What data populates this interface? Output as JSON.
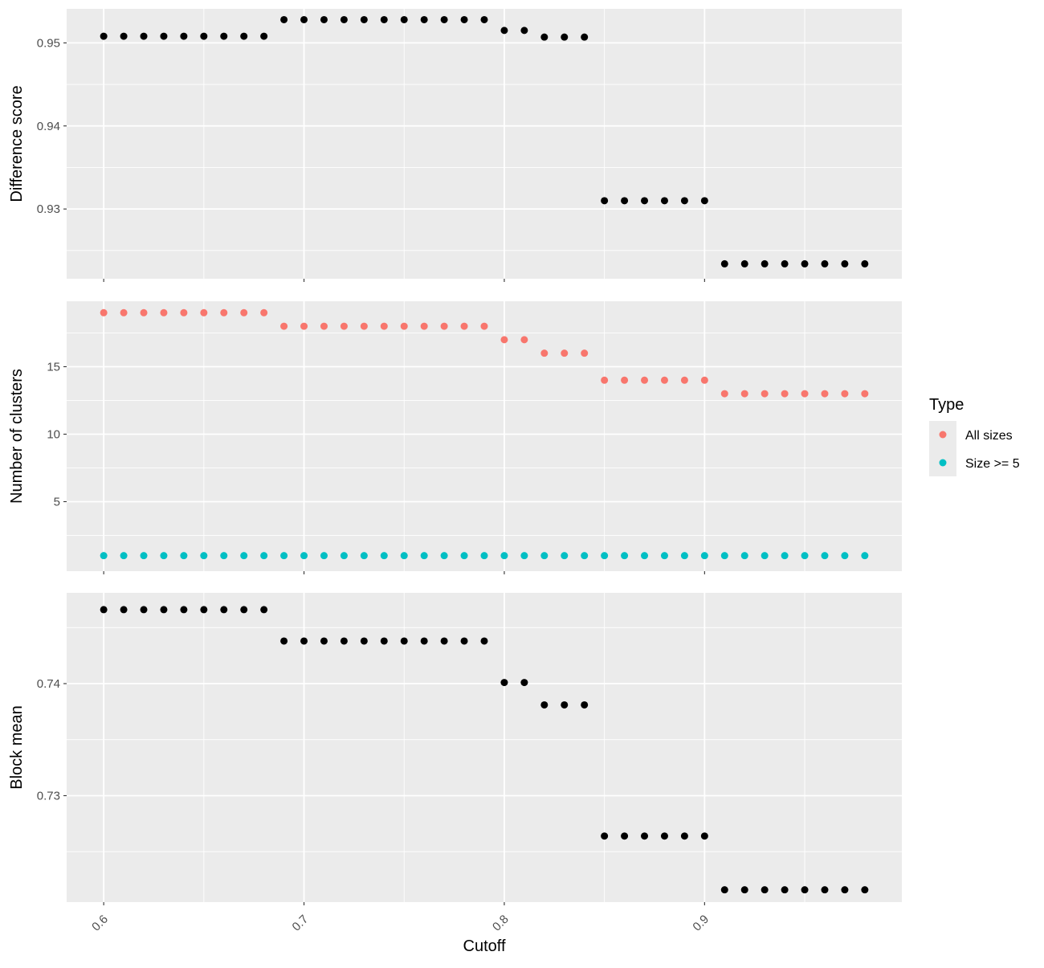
{
  "chart_data": [
    {
      "type": "scatter",
      "panel": "top",
      "ylabel": "Difference score",
      "yticks": [
        "0.95",
        "0.94",
        "0.93"
      ],
      "ytick_values": [
        0.95,
        0.94,
        0.93
      ],
      "ylim": [
        0.9216,
        0.9541
      ],
      "xlim": [
        0.5815,
        0.9985
      ],
      "grid": true,
      "x": [
        0.6,
        0.61,
        0.62,
        0.63,
        0.64,
        0.65,
        0.66,
        0.67,
        0.68,
        0.69,
        0.7,
        0.71,
        0.72,
        0.73,
        0.74,
        0.75,
        0.76,
        0.77,
        0.78,
        0.79,
        0.8,
        0.81,
        0.82,
        0.83,
        0.84,
        0.85,
        0.86,
        0.87,
        0.88,
        0.89,
        0.9,
        0.91,
        0.92,
        0.93,
        0.94,
        0.95,
        0.96,
        0.97,
        0.98
      ],
      "y": [
        0.9508,
        0.9508,
        0.9508,
        0.9508,
        0.9508,
        0.9508,
        0.9508,
        0.9508,
        0.9508,
        0.9528,
        0.9528,
        0.9528,
        0.9528,
        0.9528,
        0.9528,
        0.9528,
        0.9528,
        0.9528,
        0.9528,
        0.9528,
        0.9515,
        0.9515,
        0.9507,
        0.9507,
        0.9507,
        0.931,
        0.931,
        0.931,
        0.931,
        0.931,
        0.931,
        0.9234,
        0.9234,
        0.9234,
        0.9234,
        0.9234,
        0.9234,
        0.9234,
        0.9234
      ],
      "color": "#000000"
    },
    {
      "type": "scatter",
      "panel": "middle",
      "ylabel": "Number of clusters",
      "yticks": [
        "15",
        "10",
        "5"
      ],
      "ytick_values": [
        15,
        10,
        5
      ],
      "ylim": [
        -0.15,
        19.85
      ],
      "xlim": [
        0.5815,
        0.9985
      ],
      "grid": true,
      "x": [
        0.6,
        0.61,
        0.62,
        0.63,
        0.64,
        0.65,
        0.66,
        0.67,
        0.68,
        0.69,
        0.7,
        0.71,
        0.72,
        0.73,
        0.74,
        0.75,
        0.76,
        0.77,
        0.78,
        0.79,
        0.8,
        0.81,
        0.82,
        0.83,
        0.84,
        0.85,
        0.86,
        0.87,
        0.88,
        0.89,
        0.9,
        0.91,
        0.92,
        0.93,
        0.94,
        0.95,
        0.96,
        0.97,
        0.98
      ],
      "series": [
        {
          "name": "All sizes",
          "color": "#F8766D",
          "values": [
            19,
            19,
            19,
            19,
            19,
            19,
            19,
            19,
            19,
            18,
            18,
            18,
            18,
            18,
            18,
            18,
            18,
            18,
            18,
            18,
            17,
            17,
            16,
            16,
            16,
            14,
            14,
            14,
            14,
            14,
            14,
            13,
            13,
            13,
            13,
            13,
            13,
            13,
            13
          ]
        },
        {
          "name": "Size >= 5",
          "color": "#00BFC4",
          "values": [
            1,
            1,
            1,
            1,
            1,
            1,
            1,
            1,
            1,
            1,
            1,
            1,
            1,
            1,
            1,
            1,
            1,
            1,
            1,
            1,
            1,
            1,
            1,
            1,
            1,
            1,
            1,
            1,
            1,
            1,
            1,
            1,
            1,
            1,
            1,
            1,
            1,
            1,
            1
          ]
        }
      ],
      "legend": {
        "title": "Type",
        "placement": "right"
      }
    },
    {
      "type": "scatter",
      "panel": "bottom",
      "ylabel": "Block mean",
      "xlabel": "Cutoff",
      "yticks": [
        "0.74",
        "0.73"
      ],
      "ytick_values": [
        0.74,
        0.73
      ],
      "xticks": [
        "0.6",
        "0.7",
        "0.8",
        "0.9"
      ],
      "xtick_values": [
        0.6,
        0.7,
        0.8,
        0.9
      ],
      "ylim": [
        0.7205,
        0.7481
      ],
      "xlim": [
        0.5815,
        0.9985
      ],
      "grid": true,
      "x": [
        0.6,
        0.61,
        0.62,
        0.63,
        0.64,
        0.65,
        0.66,
        0.67,
        0.68,
        0.69,
        0.7,
        0.71,
        0.72,
        0.73,
        0.74,
        0.75,
        0.76,
        0.77,
        0.78,
        0.79,
        0.8,
        0.81,
        0.82,
        0.83,
        0.84,
        0.85,
        0.86,
        0.87,
        0.88,
        0.89,
        0.9,
        0.91,
        0.92,
        0.93,
        0.94,
        0.95,
        0.96,
        0.97,
        0.98
      ],
      "y": [
        0.7466,
        0.7466,
        0.7466,
        0.7466,
        0.7466,
        0.7466,
        0.7466,
        0.7466,
        0.7466,
        0.7438,
        0.7438,
        0.7438,
        0.7438,
        0.7438,
        0.7438,
        0.7438,
        0.7438,
        0.7438,
        0.7438,
        0.7438,
        0.7401,
        0.7401,
        0.7381,
        0.7381,
        0.7381,
        0.7264,
        0.7264,
        0.7264,
        0.7264,
        0.7264,
        0.7264,
        0.7216,
        0.7216,
        0.7216,
        0.7216,
        0.7216,
        0.7216,
        0.7216,
        0.7216
      ],
      "color": "#000000"
    }
  ],
  "legend": {
    "title": "Type",
    "items": [
      "All sizes",
      "Size >= 5"
    ]
  }
}
